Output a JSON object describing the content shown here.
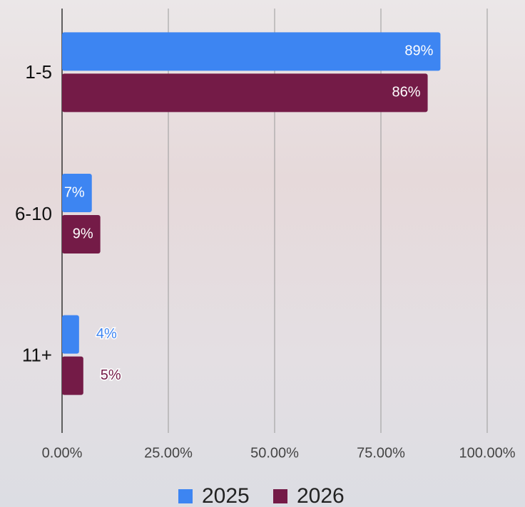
{
  "chart_data": {
    "type": "bar",
    "orientation": "horizontal",
    "categories": [
      "1-5",
      "6-10",
      "11+"
    ],
    "series": [
      {
        "name": "2025",
        "color": "#3d85f2",
        "values": [
          89,
          7,
          4
        ],
        "value_labels": [
          "89%",
          "7%",
          "4%"
        ]
      },
      {
        "name": "2026",
        "color": "#741b47",
        "values": [
          86,
          9,
          5
        ],
        "value_labels": [
          "86%",
          "9%",
          "5%"
        ]
      }
    ],
    "xlim": [
      0,
      100
    ],
    "xticks": [
      {
        "value": 0,
        "label": "0.00%"
      },
      {
        "value": 25,
        "label": "25.00%"
      },
      {
        "value": 50,
        "label": "50.00%"
      },
      {
        "value": 75,
        "label": "75.00%"
      },
      {
        "value": 100,
        "label": "100.00%"
      }
    ],
    "grid": true,
    "legend": "bottom"
  }
}
